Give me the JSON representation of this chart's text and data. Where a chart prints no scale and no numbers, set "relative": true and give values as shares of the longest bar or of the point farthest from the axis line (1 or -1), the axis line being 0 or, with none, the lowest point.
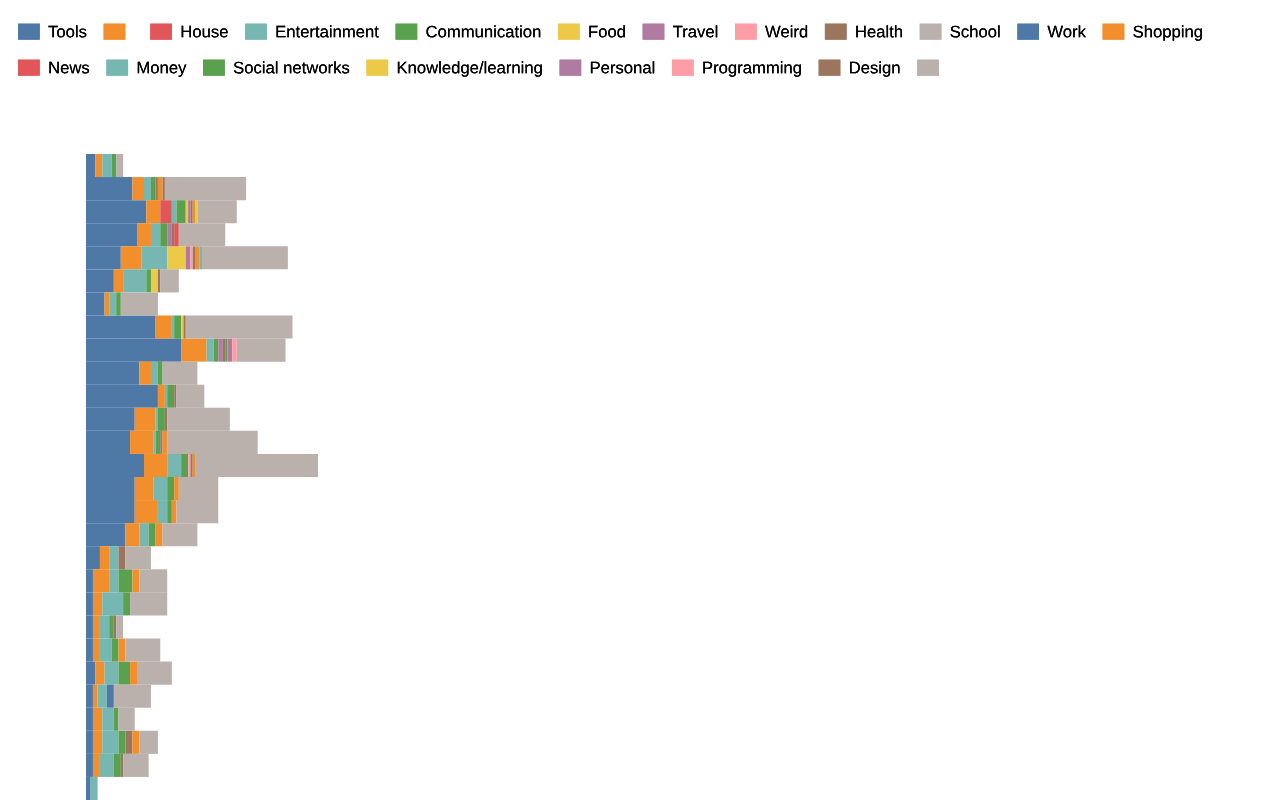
{
  "chart_data": {
    "type": "bar",
    "orientation": "horizontal",
    "stacked": true,
    "relative": true,
    "legend": "top",
    "grid": false,
    "categories": [
      null,
      null,
      null,
      null,
      null,
      null,
      null,
      null,
      null,
      null,
      null,
      null,
      null,
      null,
      null,
      null,
      null,
      null,
      null,
      null,
      null,
      null,
      null,
      null,
      null,
      null,
      null,
      null
    ],
    "series": [
      {
        "name": "Tools",
        "color": "#4e79a7",
        "values": [
          0.04,
          0.2,
          0.26,
          0.22,
          0.15,
          0.12,
          0.08,
          0.3,
          0.41,
          0.23,
          0.31,
          0.21,
          0.19,
          0.25,
          0.21,
          0.21,
          0.17,
          0.06,
          0.03,
          0.03,
          0.03,
          0.03,
          0.04,
          0.03,
          0.03,
          0.03,
          0.03,
          0.02
        ]
      },
      {
        "color": "#f28e2b",
        "values": [
          0.03,
          0.05,
          0.06,
          0.06,
          0.09,
          0.04,
          0.02,
          0.07,
          0.11,
          0.05,
          0.03,
          0.09,
          0.1,
          0.1,
          0.08,
          0.1,
          0.06,
          0.04,
          0.07,
          0.04,
          0.03,
          0.03,
          0.04,
          0.02,
          0.04,
          0.04,
          0.03,
          0
        ]
      },
      {
        "name": "House",
        "color": "#e15759",
        "values": [
          0,
          0,
          0.05,
          0,
          0,
          0,
          0,
          0,
          0,
          0,
          0,
          0,
          0,
          0,
          0,
          0,
          0,
          0,
          0,
          0,
          0,
          0,
          0,
          0,
          0,
          0,
          0,
          0
        ]
      },
      {
        "name": "Entertainment",
        "color": "#76b7b2",
        "values": [
          0.04,
          0.03,
          0.02,
          0.04,
          0.11,
          0.1,
          0.03,
          0.01,
          0.03,
          0.03,
          0.01,
          0.01,
          0.01,
          0.06,
          0.06,
          0.04,
          0.04,
          0.04,
          0.04,
          0.09,
          0.04,
          0.05,
          0.06,
          0.04,
          0.05,
          0.07,
          0.06,
          0.03
        ]
      },
      {
        "name": "Communication",
        "color": "#59a14f",
        "values": [
          0.02,
          0.02,
          0.04,
          0.03,
          0,
          0.02,
          0.02,
          0.03,
          0.02,
          0.02,
          0.03,
          0.03,
          0.02,
          0.03,
          0.03,
          0.02,
          0.03,
          0,
          0.06,
          0.03,
          0.02,
          0.03,
          0.05,
          0,
          0.02,
          0.03,
          0.03,
          0
        ]
      },
      {
        "name": "Food",
        "color": "#edc948",
        "values": [
          0,
          0,
          0.01,
          0,
          0.08,
          0.03,
          0,
          0.01,
          0,
          0,
          0,
          0,
          0,
          0,
          0,
          0,
          0,
          0,
          0,
          0,
          0,
          0,
          0,
          0,
          0,
          0,
          0,
          0
        ]
      },
      {
        "name": "Travel",
        "color": "#b07aa1",
        "values": [
          0,
          0,
          0.01,
          0.02,
          0.02,
          0,
          0,
          0,
          0.02,
          0,
          0,
          0,
          0,
          0,
          0,
          0,
          0,
          0,
          0,
          0,
          0,
          0,
          0,
          0,
          0,
          0,
          0,
          0
        ]
      },
      {
        "name": "Weird",
        "color": "#ff9da7",
        "values": [
          0,
          0,
          0,
          0,
          0.01,
          0,
          0,
          0,
          0,
          0,
          0,
          0,
          0,
          0.01,
          0,
          0,
          0,
          0,
          0,
          0,
          0,
          0,
          0,
          0,
          0,
          0,
          0,
          0
        ]
      },
      {
        "name": "Health",
        "color": "#9c755f",
        "values": [
          0,
          0.01,
          0.01,
          0.01,
          0.01,
          0.01,
          0,
          0.01,
          0.01,
          0,
          0.01,
          0.01,
          0.01,
          0.01,
          0,
          0,
          0,
          0.03,
          0,
          0,
          0.01,
          0,
          0,
          0,
          0,
          0.03,
          0.01,
          0
        ]
      },
      {
        "name": "School",
        "color": "#bab0ac",
        "values": [
          0,
          null,
          0,
          0,
          0,
          0,
          0,
          0,
          null,
          0,
          0,
          0,
          0,
          0,
          0,
          0,
          0,
          0,
          0,
          0,
          0,
          0,
          0,
          0,
          0,
          0,
          0,
          0
        ]
      },
      {
        "name": "Work",
        "color": "#4e79a7",
        "values": [
          0,
          0,
          0,
          0,
          0,
          0,
          0,
          0,
          0,
          0,
          0,
          0,
          0,
          0,
          0,
          0,
          0,
          0,
          0,
          0,
          0,
          0,
          0,
          0.03,
          0,
          0,
          0,
          0
        ]
      },
      {
        "name": "Shopping",
        "color": "#f28e2b",
        "values": [
          0,
          0.02,
          0.01,
          0,
          0.02,
          0,
          0,
          0,
          0,
          0,
          0,
          0,
          0.02,
          0.01,
          0.02,
          0.02,
          0.03,
          0,
          0.03,
          0,
          0,
          0.03,
          0.03,
          0,
          0,
          0.03,
          0,
          0
        ]
      },
      {
        "name": "News",
        "color": "#e15759",
        "values": [
          0,
          0,
          0,
          0.02,
          0,
          0,
          0,
          0,
          0,
          0,
          0,
          0,
          0,
          0,
          0,
          0,
          0,
          0,
          0,
          0,
          0,
          0,
          0,
          0,
          0,
          0,
          0,
          0
        ]
      },
      {
        "name": "Money",
        "color": "#76b7b2",
        "values": [
          0,
          0,
          0,
          0,
          0.01,
          0,
          0,
          0,
          0,
          0,
          0,
          0,
          0,
          0,
          0,
          0,
          0,
          0,
          0,
          0,
          0,
          0,
          0,
          0,
          0,
          0,
          0,
          0
        ]
      },
      {
        "name": "Social networks",
        "color": "#59a14f",
        "values": [
          0,
          0,
          0,
          0,
          0,
          0,
          0,
          0,
          0.01,
          0,
          0,
          0,
          0,
          0,
          0,
          0,
          0,
          0,
          0,
          0,
          0,
          0,
          0,
          0,
          0,
          0,
          0,
          0
        ]
      },
      {
        "name": "Knowledge/learning",
        "color": "#edc948",
        "values": [
          0,
          0,
          0.01,
          0,
          0,
          0,
          0,
          0,
          0,
          0,
          0,
          0,
          0,
          0,
          0,
          0,
          0,
          0,
          0,
          0,
          0,
          0,
          0,
          0,
          0,
          0,
          0,
          0
        ]
      },
      {
        "name": "Personal",
        "color": "#b07aa1",
        "values": [
          0,
          0,
          0,
          0,
          0,
          0,
          0,
          0,
          0.02,
          0,
          0,
          0,
          0,
          0,
          0,
          0,
          0,
          0,
          0,
          0,
          0,
          0,
          0,
          0,
          0,
          0,
          0,
          0
        ]
      },
      {
        "name": "Programming",
        "color": "#ff9da7",
        "values": [
          0,
          0,
          0,
          0,
          0,
          0,
          0,
          0,
          0.02,
          0,
          0,
          0,
          0,
          0,
          0,
          0,
          0,
          0,
          0,
          0,
          0,
          0,
          0,
          0,
          0,
          0,
          0,
          0
        ]
      },
      {
        "name": "Design",
        "color": "#9c755f",
        "values": [
          0,
          0.01,
          0,
          0,
          0,
          0,
          0,
          0,
          0,
          0,
          0,
          0,
          0,
          0,
          0,
          0,
          0,
          0,
          0,
          0,
          0,
          0,
          0,
          0,
          0,
          0,
          0,
          0
        ]
      },
      {
        "color": "#bab0ac",
        "values": [
          0.03,
          0.35,
          0.17,
          0.2,
          0.37,
          0.08,
          0.16,
          0.46,
          0.21,
          0.15,
          0.12,
          0.27,
          0.39,
          0.53,
          0.17,
          0.18,
          0.15,
          0.11,
          0.12,
          0.16,
          0.03,
          0.15,
          0.15,
          0.16,
          0.07,
          0.08,
          0.11,
          0
        ]
      }
    ]
  }
}
